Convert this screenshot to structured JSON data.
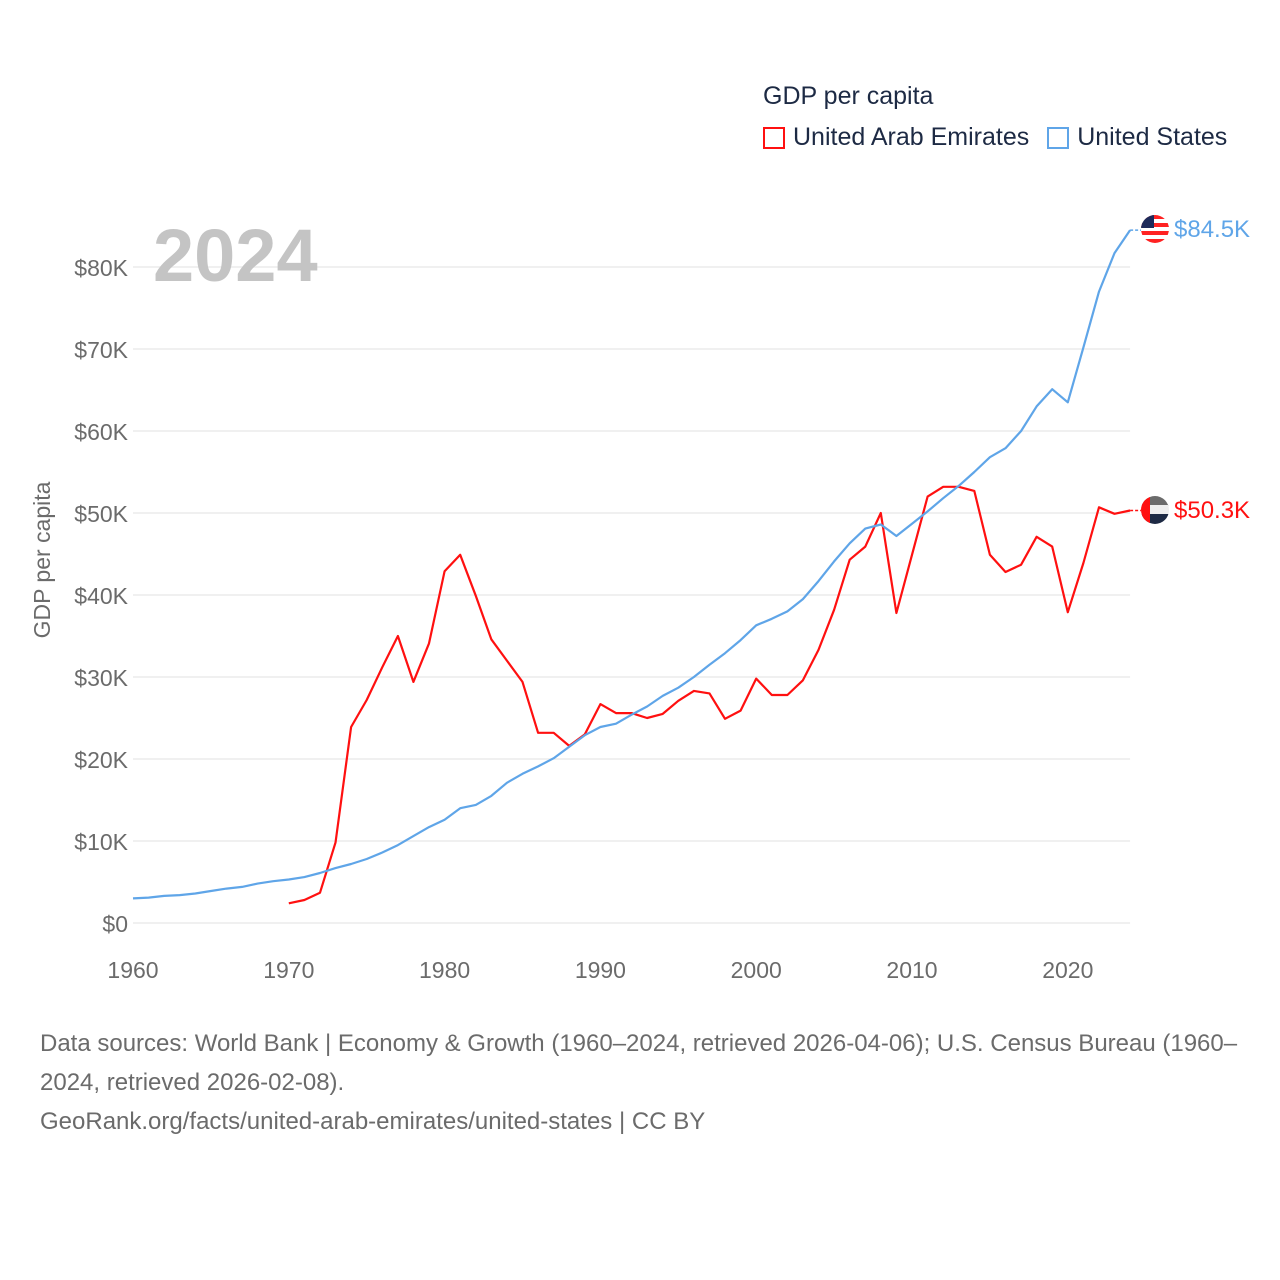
{
  "legend": {
    "title": "GDP per capita",
    "items": [
      {
        "label": "United Arab Emirates",
        "color": "#ff1010"
      },
      {
        "label": "United States",
        "color": "#5fa5e8"
      }
    ]
  },
  "footer": {
    "sources": "Data sources: World Bank | Economy & Growth (1960–2024, retrieved 2026-04-06); U.S. Census Bureau (1960–2024, retrieved 2026-02-08).",
    "credit": "GeoRank.org/facts/united-arab-emirates/united-states | CC BY"
  },
  "chart_data": {
    "type": "line",
    "title": "GDP per capita",
    "year_label": "2024",
    "xlabel": "",
    "ylabel": "GDP per capita",
    "xlim": [
      1960,
      2024
    ],
    "ylim": [
      0,
      85
    ],
    "x_ticks": [
      1960,
      1970,
      1980,
      1990,
      2000,
      2010,
      2020
    ],
    "x_tick_labels": [
      "1960",
      "1970",
      "1980",
      "1990",
      "2000",
      "2010",
      "2020"
    ],
    "y_ticks": [
      0,
      10,
      20,
      30,
      40,
      50,
      60,
      70,
      80
    ],
    "y_tick_labels": [
      "$0",
      "$10K",
      "$20K",
      "$30K",
      "$40K",
      "$50K",
      "$60K",
      "$70K",
      "$80K"
    ],
    "grid": true,
    "legend_position": "top-right",
    "units": "thousand USD",
    "series": [
      {
        "name": "United Arab Emirates",
        "color": "#ff1010",
        "end_label": "$50.3K",
        "start_year": 1970,
        "values": [
          2.4,
          2.8,
          3.7,
          9.8,
          23.9,
          27.2,
          31.2,
          35.0,
          29.4,
          34.1,
          42.9,
          44.9,
          39.9,
          34.6,
          32.0,
          29.4,
          23.2,
          23.2,
          21.6,
          23.0,
          26.7,
          25.6,
          25.6,
          25.0,
          25.5,
          27.1,
          28.3,
          28.0,
          24.9,
          25.9,
          29.8,
          27.8,
          27.8,
          29.6,
          33.3,
          38.2,
          44.3,
          45.9,
          50.0,
          37.8,
          44.9,
          52.0,
          53.2,
          53.2,
          52.7,
          44.9,
          42.8,
          43.7,
          47.1,
          45.9,
          37.9,
          43.9,
          50.7,
          49.9,
          50.3
        ]
      },
      {
        "name": "United States",
        "color": "#5fa5e8",
        "end_label": "$84.5K",
        "start_year": 1960,
        "values": [
          3.0,
          3.1,
          3.3,
          3.4,
          3.6,
          3.9,
          4.2,
          4.4,
          4.8,
          5.1,
          5.3,
          5.6,
          6.1,
          6.7,
          7.2,
          7.8,
          8.6,
          9.5,
          10.6,
          11.7,
          12.6,
          14.0,
          14.4,
          15.5,
          17.1,
          18.2,
          19.1,
          20.1,
          21.5,
          22.9,
          23.9,
          24.3,
          25.4,
          26.4,
          27.7,
          28.7,
          30.0,
          31.5,
          32.9,
          34.5,
          36.3,
          37.1,
          38.0,
          39.5,
          41.7,
          44.1,
          46.3,
          48.1,
          48.6,
          47.2,
          48.7,
          50.2,
          51.8,
          53.3,
          55.0,
          56.8,
          57.9,
          60.0,
          63.0,
          65.1,
          63.5,
          70.2,
          77.0,
          81.7,
          84.5
        ]
      }
    ]
  }
}
